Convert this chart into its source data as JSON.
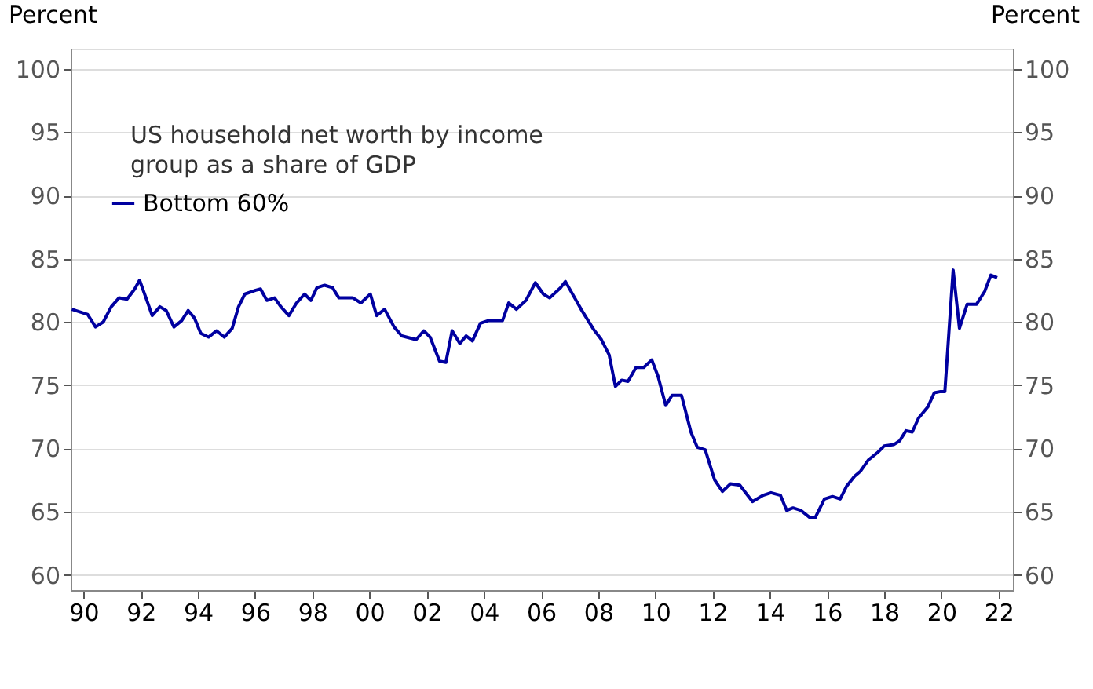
{
  "chart_data": {
    "type": "line",
    "title": "US household net worth by income\ngroup as a share of GDP",
    "ylabel": "Percent",
    "y2label": "Percent",
    "xlim": [
      1989.55,
      2022.5
    ],
    "xticks": [
      {
        "value": 1990,
        "label": "90"
      },
      {
        "value": 1992,
        "label": "92"
      },
      {
        "value": 1994,
        "label": "94"
      },
      {
        "value": 1996,
        "label": "96"
      },
      {
        "value": 1998,
        "label": "98"
      },
      {
        "value": 2000,
        "label": "00"
      },
      {
        "value": 2002,
        "label": "02"
      },
      {
        "value": 2004,
        "label": "04"
      },
      {
        "value": 2006,
        "label": "06"
      },
      {
        "value": 2008,
        "label": "08"
      },
      {
        "value": 2010,
        "label": "10"
      },
      {
        "value": 2012,
        "label": "12"
      },
      {
        "value": 2014,
        "label": "14"
      },
      {
        "value": 2016,
        "label": "16"
      },
      {
        "value": 2018,
        "label": "18"
      },
      {
        "value": 2020,
        "label": "20"
      },
      {
        "value": 2022,
        "label": "22"
      }
    ],
    "ylim": [
      58.8,
      101.6
    ],
    "yticks": [
      60,
      65,
      70,
      75,
      80,
      85,
      90,
      95,
      100
    ],
    "y2lim": [
      58.8,
      101.6
    ],
    "y2ticks": [
      60,
      65,
      70,
      75,
      80,
      85,
      90,
      95,
      100
    ],
    "grid": "y",
    "legend": "top left",
    "line_style": "solid",
    "series": [
      {
        "name": "Bottom 60%",
        "color": "#0000a0",
        "x": [
          1989.59,
          1990.14,
          1990.42,
          1990.69,
          1990.97,
          1991.24,
          1991.52,
          1991.79,
          1991.96,
          1992.23,
          1992.4,
          1992.67,
          1992.89,
          1993.16,
          1993.43,
          1993.66,
          1993.88,
          1994.1,
          1994.37,
          1994.65,
          1994.92,
          1995.2,
          1995.42,
          1995.64,
          1996.02,
          1996.19,
          1996.41,
          1996.68,
          1996.9,
          1997.18,
          1997.45,
          1997.73,
          1997.95,
          1998.16,
          1998.43,
          1998.71,
          1998.93,
          1999.42,
          1999.7,
          2000.03,
          2000.25,
          2000.53,
          2000.86,
          2001.13,
          2001.63,
          2001.9,
          2002.12,
          2002.45,
          2002.67,
          2002.89,
          2003.16,
          2003.38,
          2003.6,
          2003.88,
          2004.15,
          2004.65,
          2004.87,
          2005.14,
          2005.47,
          2005.8,
          2006.08,
          2006.3,
          2006.68,
          2006.85,
          2007.4,
          2007.84,
          2008.11,
          2008.38,
          2008.6,
          2008.82,
          2009.04,
          2009.32,
          2009.59,
          2009.87,
          2010.09,
          2010.36,
          2010.58,
          2010.91,
          2011.24,
          2011.46,
          2011.74,
          2012.07,
          2012.34,
          2012.62,
          2012.95,
          2013.39,
          2013.77,
          2014.04,
          2014.37,
          2014.59,
          2014.81,
          2015.09,
          2015.42,
          2015.58,
          2015.91,
          2016.19,
          2016.46,
          2016.68,
          2016.96,
          2017.17,
          2017.45,
          2017.78,
          2018.0,
          2018.33,
          2018.54,
          2018.76,
          2018.98,
          2019.2,
          2019.53,
          2019.75,
          2019.97,
          2020.12,
          2020.41,
          2020.63,
          2020.9,
          2021.23,
          2021.51,
          2021.73,
          2021.95
        ],
        "values": [
          81.0,
          80.6,
          79.6,
          80.0,
          81.2,
          81.9,
          81.8,
          82.6,
          83.3,
          81.6,
          80.5,
          81.2,
          80.9,
          79.6,
          80.1,
          80.9,
          80.3,
          79.1,
          78.8,
          79.3,
          78.8,
          79.5,
          81.2,
          82.2,
          82.5,
          82.6,
          81.7,
          81.9,
          81.2,
          80.5,
          81.5,
          82.2,
          81.7,
          82.7,
          82.9,
          82.7,
          81.9,
          81.9,
          81.5,
          82.2,
          80.5,
          81.0,
          79.6,
          78.9,
          78.6,
          79.3,
          78.8,
          76.9,
          76.8,
          79.3,
          78.3,
          78.9,
          78.5,
          79.9,
          80.1,
          80.1,
          81.5,
          81.0,
          81.7,
          83.1,
          82.2,
          81.9,
          82.7,
          83.2,
          81.0,
          79.4,
          78.6,
          77.4,
          74.9,
          75.4,
          75.3,
          76.4,
          76.4,
          77.0,
          75.7,
          73.4,
          74.2,
          74.2,
          71.3,
          70.1,
          69.9,
          67.5,
          66.6,
          67.2,
          67.1,
          65.8,
          66.3,
          66.5,
          66.3,
          65.1,
          65.3,
          65.1,
          64.5,
          64.5,
          66.0,
          66.2,
          66.0,
          67.0,
          67.8,
          68.2,
          69.1,
          69.7,
          70.2,
          70.3,
          70.6,
          71.4,
          71.3,
          72.4,
          73.3,
          74.4,
          74.5,
          74.5,
          84.1,
          79.5,
          81.4,
          81.4,
          82.4,
          83.7,
          83.5
        ]
      }
    ]
  }
}
